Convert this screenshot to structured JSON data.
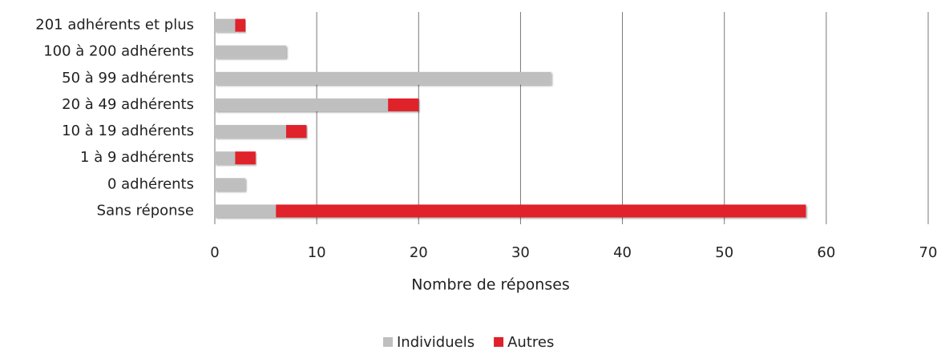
{
  "chart_data": {
    "type": "stacked-barh",
    "x_label": "Nombre de réponses",
    "categories": [
      "201 adhérents et plus",
      "100 à 200 adhérents",
      "50 à 99 adhérents",
      "20 à 49 adhérents",
      "10 à 19 adhérents",
      "1 à 9 adhérents",
      "0 adhérents",
      "Sans réponse"
    ],
    "series": [
      {
        "name": "Individuels",
        "color": "#bfbfbf",
        "values": [
          2,
          7,
          33,
          17,
          7,
          2,
          3,
          6
        ]
      },
      {
        "name": "Autres",
        "color": "#e0202a",
        "values": [
          1,
          0,
          0,
          3,
          2,
          2,
          0,
          52
        ]
      }
    ],
    "xlim": [
      0,
      70
    ],
    "xticks": [
      0,
      10,
      20,
      30,
      40,
      50,
      60,
      70
    ],
    "grid": true,
    "legend": "bottom"
  }
}
